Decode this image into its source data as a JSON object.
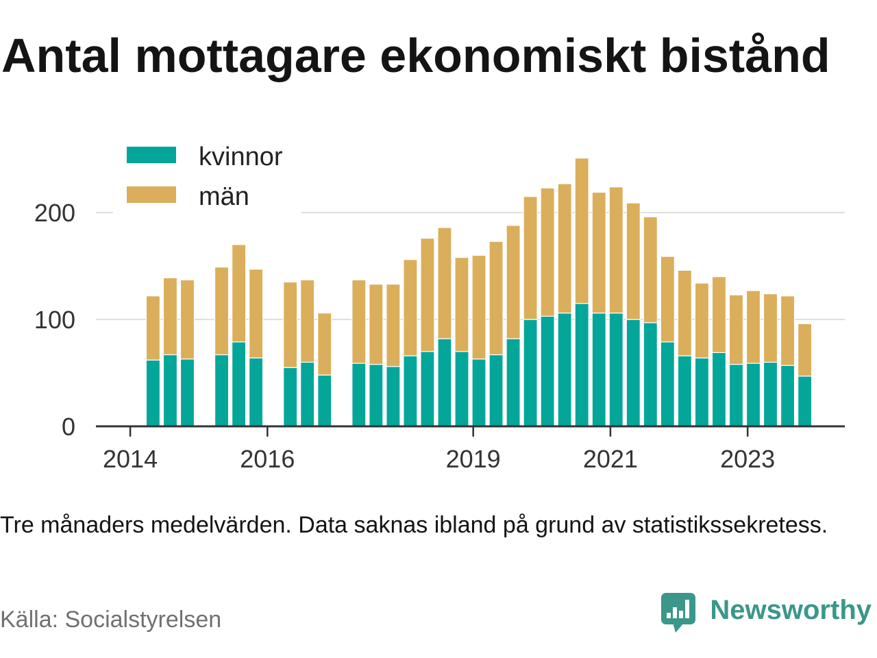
{
  "chart_data": {
    "type": "bar",
    "stacked": true,
    "title": "Antal mottagare ekonomiskt bistånd",
    "x": [
      "2014-05",
      "2014-08",
      "2014-11",
      "2015-05",
      "2015-08",
      "2015-11",
      "2016-05",
      "2016-08",
      "2016-11",
      "2017-05",
      "2017-08",
      "2017-11",
      "2018-02",
      "2018-05",
      "2018-08",
      "2018-11",
      "2019-02",
      "2019-05",
      "2019-08",
      "2019-11",
      "2020-02",
      "2020-05",
      "2020-08",
      "2020-11",
      "2021-02",
      "2021-05",
      "2021-08",
      "2021-11",
      "2022-02",
      "2022-05",
      "2022-08",
      "2022-11",
      "2023-02",
      "2023-05",
      "2023-08",
      "2023-11"
    ],
    "series": [
      {
        "name": "kvinnor",
        "color": "#05a69a",
        "values": [
          62,
          67,
          63,
          67,
          79,
          64,
          55,
          60,
          48,
          59,
          58,
          56,
          66,
          70,
          82,
          70,
          63,
          67,
          82,
          100,
          103,
          106,
          115,
          106,
          106,
          100,
          97,
          79,
          66,
          64,
          69,
          58,
          59,
          60,
          57,
          47
        ]
      },
      {
        "name": "män",
        "color": "#dbae5b",
        "values": [
          60,
          72,
          74,
          82,
          91,
          83,
          80,
          77,
          58,
          78,
          75,
          77,
          90,
          106,
          104,
          88,
          97,
          106,
          106,
          115,
          120,
          121,
          136,
          113,
          118,
          109,
          99,
          80,
          80,
          70,
          71,
          65,
          68,
          64,
          65,
          49
        ]
      }
    ],
    "x_ticks": [
      "2014",
      "2016",
      "2019",
      "2021",
      "2023"
    ],
    "y_ticks": [
      0,
      100,
      200
    ],
    "xlim": [
      "2013-07",
      "2024-06"
    ],
    "ylim": [
      0,
      270
    ],
    "grid": "y",
    "legend": "top-left"
  },
  "caption": "Tre månaders medelvärden. Data saknas ibland på grund av statistikssekretess.",
  "source": "Källa: Socialstyrelsen",
  "logo": {
    "text": "Newsworthy",
    "icon": "newsworthy-logo-icon",
    "color": "#3a978a"
  }
}
